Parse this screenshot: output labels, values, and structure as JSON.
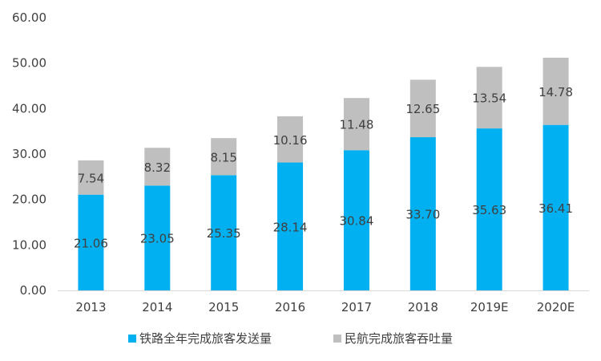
{
  "chart_data": {
    "type": "bar",
    "stacked": true,
    "title": "",
    "xlabel": "",
    "ylabel": "",
    "ylim": [
      0,
      60
    ],
    "yticks": [
      "0.00",
      "10.00",
      "20.00",
      "30.00",
      "40.00",
      "50.00",
      "60.00"
    ],
    "categories": [
      "2013",
      "2014",
      "2015",
      "2016",
      "2017",
      "2018",
      "2019E",
      "2020E"
    ],
    "series": [
      {
        "name": "铁路全年完成旅客发送量",
        "color": "#00B0F0",
        "values": [
          21.06,
          23.05,
          25.35,
          28.14,
          30.84,
          33.7,
          35.63,
          36.41
        ],
        "labels": [
          "21.06",
          "23.05",
          "25.35",
          "28.14",
          "30.84",
          "33.70",
          "35.63",
          "36.41"
        ]
      },
      {
        "name": "民航完成旅客吞吐量",
        "color": "#BFBFBF",
        "values": [
          7.54,
          8.32,
          8.15,
          10.16,
          11.48,
          12.65,
          13.54,
          14.78
        ],
        "labels": [
          "7.54",
          "8.32",
          "8.15",
          "10.16",
          "11.48",
          "12.65",
          "13.54",
          "14.78"
        ]
      }
    ],
    "grid": false,
    "legend_position": "bottom"
  }
}
